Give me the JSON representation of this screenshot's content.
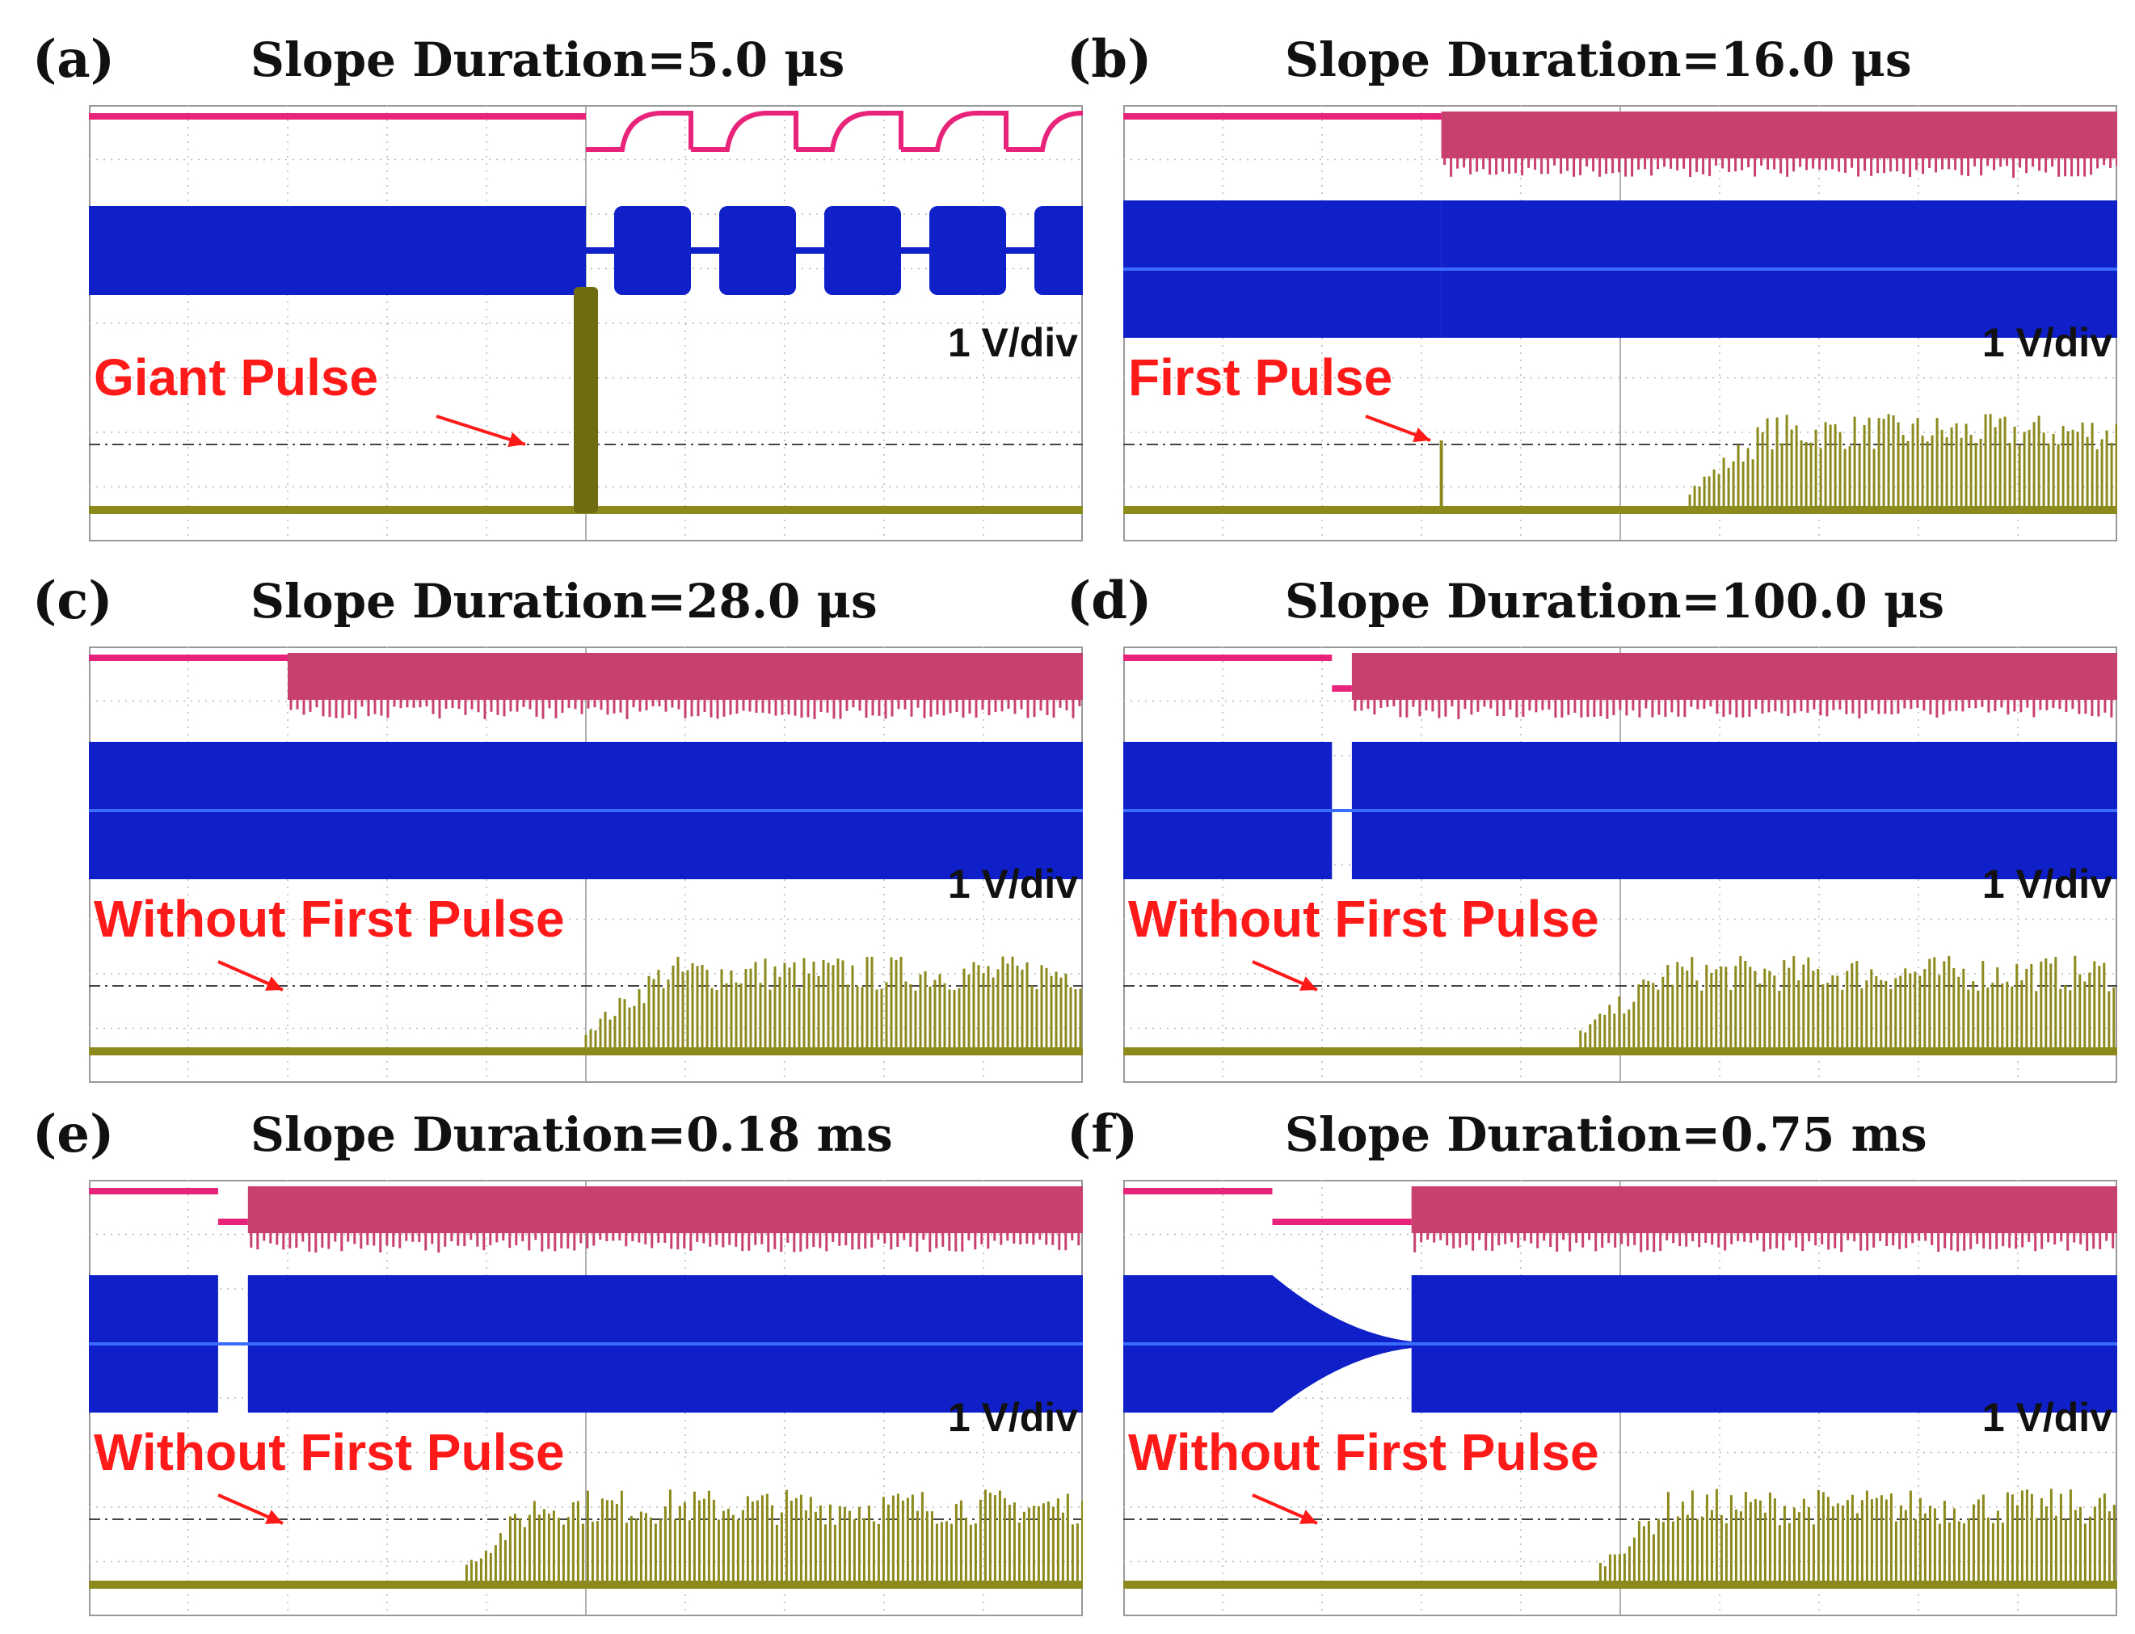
{
  "colors": {
    "ch2_pulse_train": "#e8247a",
    "ch1_seed_signal": "#1020c8",
    "ch_output_pulses": "#8c8a1c",
    "annotation": "#ff1a1a",
    "grid": "#b8b8b8",
    "ch2_fill": "#c8406e"
  },
  "chart_data": [
    {
      "type": "line",
      "panel": "(a)",
      "title": "Slope Duration=5.0 μs",
      "scale_label": "1 V/div",
      "annotation": "Giant Pulse",
      "series": [
        {
          "channel": "C2",
          "color": "#e8247a",
          "switch_div": 5.0,
          "behavior": "square pulses after switch"
        },
        {
          "channel": "C3",
          "color": "#1020c8",
          "switch_div": 5.0,
          "behavior": "bursts after switch"
        },
        {
          "channel": "C1",
          "color": "#8c8a1c",
          "switch_div": 5.0,
          "behavior": "single giant pulse"
        }
      ],
      "x_divs": 10,
      "giant_pulse_div": 5.0
    },
    {
      "type": "line",
      "panel": "(b)",
      "title": "Slope Duration=16.0 μs",
      "scale_label": "1 V/div",
      "annotation": "First Pulse",
      "series": [
        {
          "channel": "C2",
          "color": "#e8247a",
          "switch_div": 3.2
        },
        {
          "channel": "C3",
          "color": "#1020c8",
          "switch_div": 3.2
        },
        {
          "channel": "C1",
          "color": "#8c8a1c",
          "first_pulse_div": 3.2,
          "onset_div": 5.7,
          "plateau_div": 6.5
        }
      ],
      "x_divs": 10
    },
    {
      "type": "line",
      "panel": "(c)",
      "title": "Slope Duration=28.0 μs",
      "scale_label": "1 V/div",
      "annotation": "Without First Pulse",
      "series": [
        {
          "channel": "C2",
          "color": "#e8247a",
          "switch_div": 2.0
        },
        {
          "channel": "C3",
          "color": "#1020c8",
          "switch_div": 2.0
        },
        {
          "channel": "C1",
          "color": "#8c8a1c",
          "onset_div": 5.0,
          "plateau_div": 5.8
        }
      ],
      "x_divs": 10
    },
    {
      "type": "line",
      "panel": "(d)",
      "title": "Slope Duration=100.0 μs",
      "scale_label": "1 V/div",
      "annotation": "Without First Pulse",
      "series": [
        {
          "channel": "C2",
          "color": "#e8247a",
          "drop_div": 2.1,
          "switch_div": 2.3
        },
        {
          "channel": "C3",
          "color": "#1020c8",
          "drop_div": 2.1,
          "switch_div": 2.3
        },
        {
          "channel": "C1",
          "color": "#8c8a1c",
          "onset_div": 4.6,
          "plateau_div": 5.5
        }
      ],
      "x_divs": 10
    },
    {
      "type": "line",
      "panel": "(e)",
      "title": "Slope Duration=0.18 ms",
      "scale_label": "1 V/div",
      "annotation": "Without First Pulse",
      "series": [
        {
          "channel": "C2",
          "color": "#e8247a",
          "drop_div": 1.3,
          "switch_div": 1.6
        },
        {
          "channel": "C3",
          "color": "#1020c8",
          "drop_div": 1.3,
          "switch_div": 1.6
        },
        {
          "channel": "C1",
          "color": "#8c8a1c",
          "onset_div": 3.8,
          "plateau_div": 4.5
        }
      ],
      "x_divs": 10
    },
    {
      "type": "line",
      "panel": "(f)",
      "title": "Slope Duration=0.75 ms",
      "scale_label": "1 V/div",
      "annotation": "Without First Pulse",
      "series": [
        {
          "channel": "C2",
          "color": "#e8247a",
          "drop_div": 1.5,
          "switch_div": 2.9
        },
        {
          "channel": "C3",
          "color": "#1020c8",
          "drop_div": 1.5,
          "switch_div": 2.9
        },
        {
          "channel": "C1",
          "color": "#8c8a1c",
          "onset_div": 4.8,
          "plateau_div": 5.5
        }
      ],
      "x_divs": 10
    }
  ]
}
